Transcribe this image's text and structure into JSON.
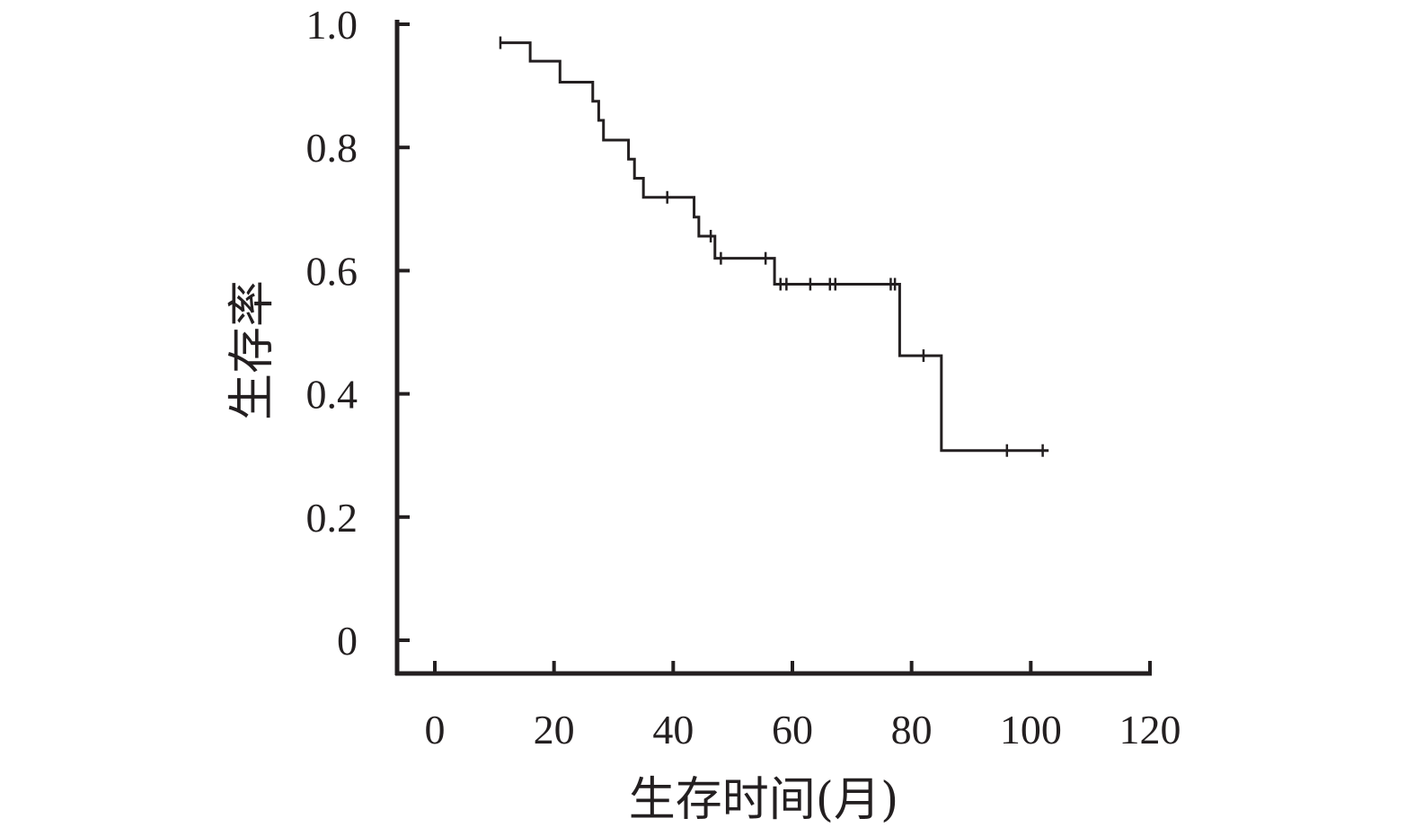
{
  "chart_data": {
    "type": "line",
    "xlabel": "生存时间(月)",
    "ylabel": "生存率",
    "xlim": [
      0,
      120
    ],
    "ylim": [
      0,
      1.0
    ],
    "x_ticks": [
      "0",
      "20",
      "40",
      "60",
      "80",
      "100",
      "120"
    ],
    "y_ticks": [
      "0",
      "0.2",
      "0.4",
      "0.6",
      "0.8",
      "1.0"
    ],
    "grid": false,
    "series": [
      {
        "step": true,
        "x": [
          11,
          16,
          21,
          26.5,
          27.5,
          28.3,
          32.5,
          33.5,
          35,
          43.5,
          44.3,
          47,
          57,
          78,
          85,
          103
        ],
        "y": [
          0.97,
          0.94,
          0.906,
          0.875,
          0.844,
          0.812,
          0.781,
          0.75,
          0.719,
          0.687,
          0.656,
          0.62,
          0.578,
          0.462,
          0.308,
          0.308
        ],
        "censored": [
          {
            "x": 11,
            "y": 0.97
          },
          {
            "x": 39,
            "y": 0.719
          },
          {
            "x": 46.3,
            "y": 0.656
          },
          {
            "x": 48,
            "y": 0.62
          },
          {
            "x": 55.5,
            "y": 0.62
          },
          {
            "x": 58,
            "y": 0.578
          },
          {
            "x": 59,
            "y": 0.578
          },
          {
            "x": 63,
            "y": 0.578
          },
          {
            "x": 66.3,
            "y": 0.578
          },
          {
            "x": 67.2,
            "y": 0.578
          },
          {
            "x": 76.5,
            "y": 0.578
          },
          {
            "x": 77.2,
            "y": 0.578
          },
          {
            "x": 82,
            "y": 0.462
          },
          {
            "x": 96,
            "y": 0.308
          },
          {
            "x": 102,
            "y": 0.308
          }
        ]
      }
    ]
  }
}
